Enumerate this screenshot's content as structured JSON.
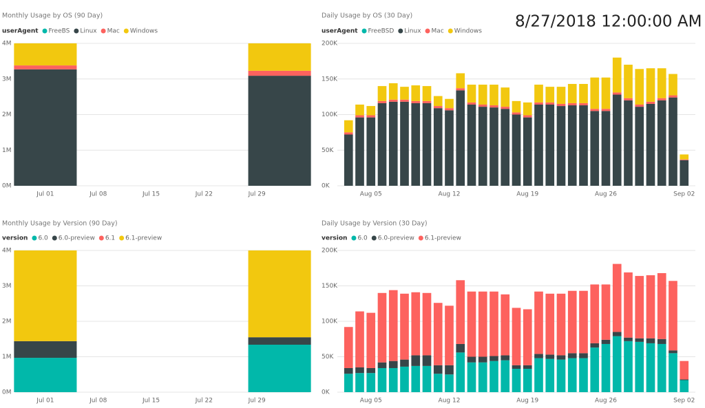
{
  "timestamp": "8/27/2018 12:00:00 AM",
  "chart_data": [
    {
      "type": "stacked_bar",
      "title": "Monthly Usage by OS (90 Day)",
      "legend_title": "userAgent",
      "x": [
        "07-01",
        "08-01"
      ],
      "xlim": [
        "06-27",
        "08-05"
      ],
      "xticks": [
        {
          "value": "07-01",
          "label": "Jul 01"
        },
        {
          "value": "07-08",
          "label": "Jul 08"
        },
        {
          "value": "07-15",
          "label": "Jul 15"
        },
        {
          "value": "07-22",
          "label": "Jul 22"
        },
        {
          "value": "07-29",
          "label": "Jul 29"
        }
      ],
      "ylim": [
        0,
        4
      ],
      "yticks": [
        {
          "value": 0,
          "label": "0M"
        },
        {
          "value": 1,
          "label": "1M"
        },
        {
          "value": 2,
          "label": "2M"
        },
        {
          "value": 3,
          "label": "3M"
        },
        {
          "value": 4,
          "label": "4M"
        }
      ],
      "grid": true,
      "series": [
        {
          "name": "FreeBS",
          "color": "#01B8AA",
          "values": [
            0,
            0
          ]
        },
        {
          "name": "Linux",
          "color": "#374649",
          "values": [
            3.27,
            3.09
          ]
        },
        {
          "name": "Mac",
          "color": "#FD625E",
          "values": [
            0.11,
            0.14
          ]
        },
        {
          "name": "Windows",
          "color": "#F2C80F",
          "values": [
            0.62,
            0.77
          ]
        }
      ]
    },
    {
      "type": "stacked_bar",
      "title": "Daily Usage by OS (30 Day)",
      "legend_title": "userAgent",
      "x": [
        "08-03",
        "08-04",
        "08-05",
        "08-06",
        "08-07",
        "08-08",
        "08-09",
        "08-10",
        "08-11",
        "08-12",
        "08-13",
        "08-14",
        "08-15",
        "08-16",
        "08-17",
        "08-18",
        "08-19",
        "08-20",
        "08-21",
        "08-22",
        "08-23",
        "08-24",
        "08-25",
        "08-26",
        "08-27",
        "08-28",
        "08-29",
        "08-30",
        "08-31",
        "09-01",
        "09-02"
      ],
      "xlim": [
        "08-02",
        "09-03"
      ],
      "xticks": [
        {
          "value": "08-05",
          "label": "Aug 05"
        },
        {
          "value": "08-12",
          "label": "Aug 12"
        },
        {
          "value": "08-19",
          "label": "Aug 19"
        },
        {
          "value": "08-26",
          "label": "Aug 26"
        },
        {
          "value": "09-02",
          "label": "Sep 02"
        }
      ],
      "ylim": [
        0,
        200
      ],
      "yticks": [
        {
          "value": 0,
          "label": "0K"
        },
        {
          "value": 50,
          "label": "50K"
        },
        {
          "value": 100,
          "label": "100K"
        },
        {
          "value": 150,
          "label": "150K"
        },
        {
          "value": 200,
          "label": "200K"
        }
      ],
      "grid": true,
      "series": [
        {
          "name": "FreeBSD",
          "color": "#01B8AA",
          "values": [
            0,
            0,
            0,
            0,
            0,
            0,
            0,
            0,
            0,
            0,
            0,
            0,
            0,
            0,
            0,
            0,
            0,
            0,
            0,
            0,
            0,
            0,
            0,
            0,
            0,
            0,
            0,
            0,
            0,
            0,
            0
          ]
        },
        {
          "name": "Linux",
          "color": "#374649",
          "values": [
            72,
            96,
            96,
            116,
            118,
            118,
            116,
            116,
            109,
            106,
            134,
            114,
            111,
            110,
            108,
            100,
            96,
            114,
            114,
            112,
            113,
            113,
            105,
            105,
            128,
            120,
            111,
            115,
            120,
            124,
            36
          ]
        },
        {
          "name": "Mac",
          "color": "#FD625E",
          "values": [
            3,
            3,
            3,
            3,
            3,
            3,
            3,
            3,
            3,
            3,
            3,
            3,
            3,
            3,
            3,
            3,
            3,
            3,
            3,
            3,
            3,
            3,
            3,
            3,
            3,
            3,
            3,
            3,
            3,
            3,
            1
          ]
        },
        {
          "name": "Windows",
          "color": "#F2C80F",
          "values": [
            17,
            15,
            13,
            21,
            23,
            18,
            22,
            21,
            14,
            13,
            21,
            25,
            28,
            29,
            27,
            16,
            18,
            25,
            22,
            24,
            27,
            27,
            44,
            44,
            49,
            47,
            50,
            47,
            42,
            30,
            7
          ]
        }
      ]
    },
    {
      "type": "stacked_bar",
      "title": "Monthly Usage by Version (90 Day)",
      "legend_title": "version",
      "x": [
        "07-01",
        "08-01"
      ],
      "xlim": [
        "06-27",
        "08-05"
      ],
      "xticks": [
        {
          "value": "07-01",
          "label": "Jul 01"
        },
        {
          "value": "07-08",
          "label": "Jul 08"
        },
        {
          "value": "07-15",
          "label": "Jul 15"
        },
        {
          "value": "07-22",
          "label": "Jul 22"
        },
        {
          "value": "07-29",
          "label": "Jul 29"
        }
      ],
      "ylim": [
        0,
        4
      ],
      "yticks": [
        {
          "value": 0,
          "label": "0M"
        },
        {
          "value": 1,
          "label": "1M"
        },
        {
          "value": 2,
          "label": "2M"
        },
        {
          "value": 3,
          "label": "3M"
        },
        {
          "value": 4,
          "label": "4M"
        }
      ],
      "grid": true,
      "series": [
        {
          "name": "6.0",
          "color": "#01B8AA",
          "values": [
            0.97,
            1.34
          ]
        },
        {
          "name": "6.0-preview",
          "color": "#374649",
          "values": [
            0.47,
            0.21
          ]
        },
        {
          "name": "6.1",
          "color": "#FD625E",
          "values": [
            0,
            0
          ]
        },
        {
          "name": "6.1-preview",
          "color": "#F2C80F",
          "values": [
            2.56,
            2.45
          ]
        }
      ]
    },
    {
      "type": "stacked_bar",
      "title": "Daily Usage by Version (30 Day)",
      "legend_title": "version",
      "x": [
        "08-03",
        "08-04",
        "08-05",
        "08-06",
        "08-07",
        "08-08",
        "08-09",
        "08-10",
        "08-11",
        "08-12",
        "08-13",
        "08-14",
        "08-15",
        "08-16",
        "08-17",
        "08-18",
        "08-19",
        "08-20",
        "08-21",
        "08-22",
        "08-23",
        "08-24",
        "08-25",
        "08-26",
        "08-27",
        "08-28",
        "08-29",
        "08-30",
        "08-31",
        "09-01",
        "09-02"
      ],
      "xlim": [
        "08-02",
        "09-03"
      ],
      "xticks": [
        {
          "value": "08-05",
          "label": "Aug 05"
        },
        {
          "value": "08-12",
          "label": "Aug 12"
        },
        {
          "value": "08-19",
          "label": "Aug 19"
        },
        {
          "value": "08-26",
          "label": "Aug 26"
        },
        {
          "value": "09-02",
          "label": "Sep 02"
        }
      ],
      "ylim": [
        0,
        200
      ],
      "yticks": [
        {
          "value": 0,
          "label": "0K"
        },
        {
          "value": 50,
          "label": "50K"
        },
        {
          "value": 100,
          "label": "100K"
        },
        {
          "value": 150,
          "label": "150K"
        },
        {
          "value": 200,
          "label": "200K"
        }
      ],
      "grid": true,
      "series": [
        {
          "name": "6.0",
          "color": "#01B8AA",
          "values": [
            26,
            27,
            27,
            34,
            34,
            36,
            37,
            37,
            26,
            25,
            56,
            42,
            42,
            44,
            45,
            33,
            33,
            48,
            47,
            46,
            48,
            48,
            63,
            68,
            79,
            72,
            71,
            69,
            68,
            55,
            17
          ]
        },
        {
          "name": "6.0-preview",
          "color": "#374649",
          "values": [
            8,
            8,
            7,
            8,
            10,
            10,
            15,
            15,
            12,
            13,
            12,
            8,
            8,
            7,
            7,
            5,
            5,
            6,
            6,
            6,
            7,
            7,
            6,
            6,
            6,
            5,
            5,
            7,
            7,
            4,
            1
          ]
        },
        {
          "name": "6.1-preview",
          "color": "#FD625E",
          "values": [
            58,
            79,
            78,
            98,
            100,
            93,
            89,
            88,
            88,
            84,
            90,
            92,
            92,
            91,
            86,
            81,
            79,
            88,
            86,
            87,
            88,
            88,
            83,
            78,
            96,
            92,
            88,
            89,
            93,
            98,
            26
          ]
        }
      ]
    }
  ]
}
